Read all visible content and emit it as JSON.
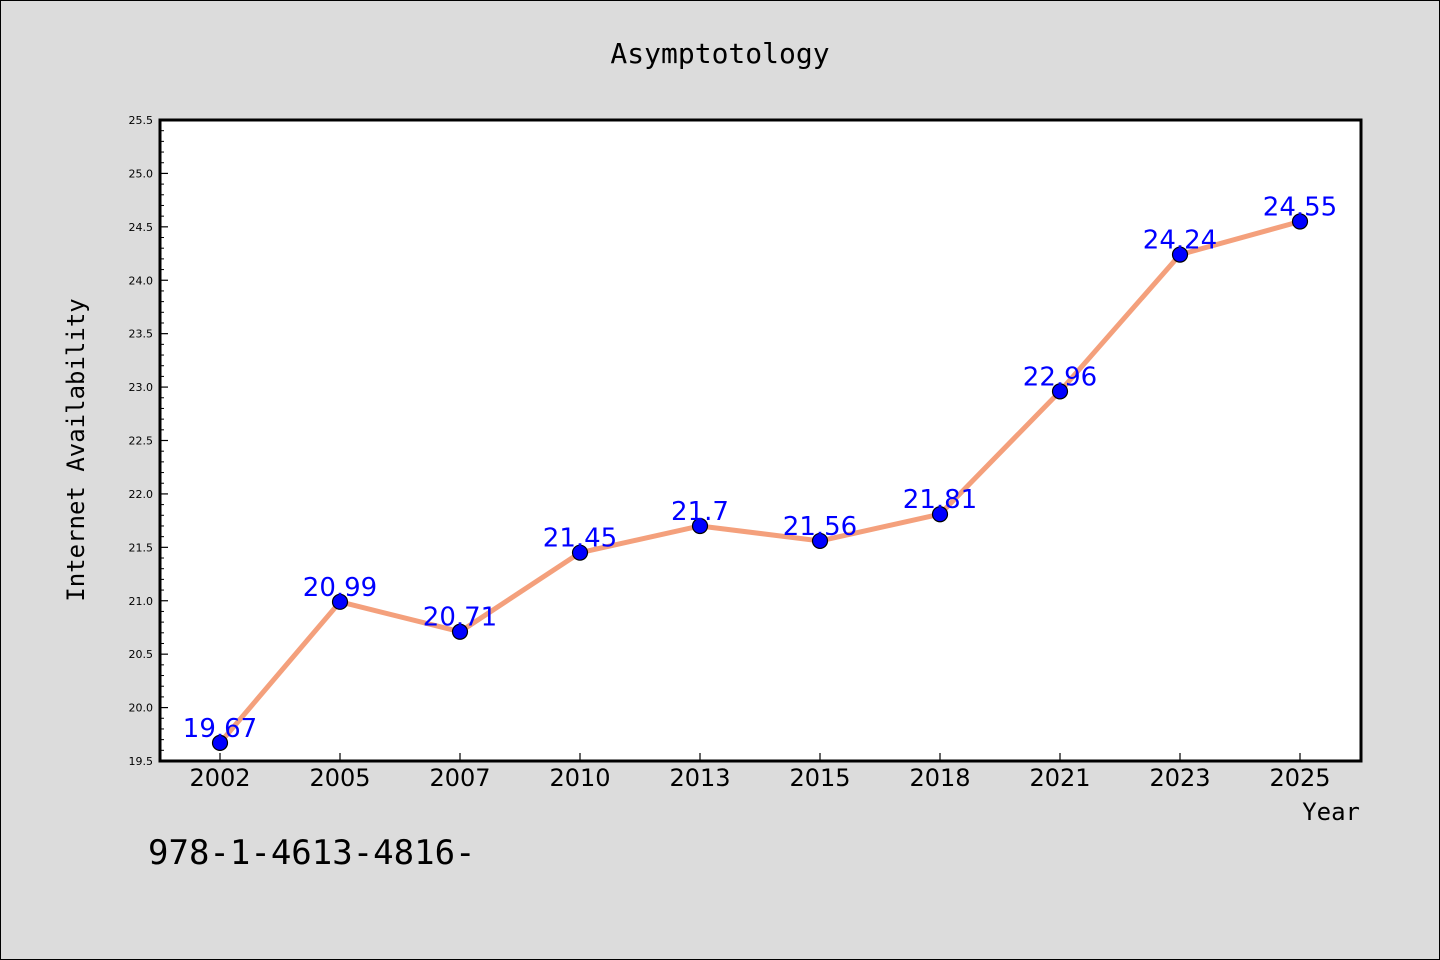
{
  "chart_data": {
    "type": "line",
    "title": "Asymptotology",
    "xlabel": "Year",
    "ylabel": "Internet Availability",
    "categories": [
      "2002",
      "2005",
      "2007",
      "2010",
      "2013",
      "2015",
      "2018",
      "2021",
      "2023",
      "2025"
    ],
    "values": [
      19.67,
      20.99,
      20.71,
      21.45,
      21.7,
      21.56,
      21.81,
      22.96,
      24.24,
      24.55
    ],
    "data_labels": [
      "19.67",
      "20.99",
      "20.71",
      "21.45",
      "21.7",
      "21.56",
      "21.81",
      "22.96",
      "24.24",
      "24.55"
    ],
    "ylim": [
      19.5,
      25.5
    ],
    "yticks": [
      "19.5",
      "20.0",
      "20.5",
      "21.0",
      "21.5",
      "22.0",
      "22.5",
      "23.0",
      "23.5",
      "24.0",
      "24.5",
      "25.0",
      "25.5"
    ],
    "grid": false,
    "legend": "none",
    "line_color": "#f4a07c",
    "marker_color": "#0000ff",
    "label_color": "#0000ff"
  },
  "footer": {
    "text": "978-1-4613-4816-"
  }
}
